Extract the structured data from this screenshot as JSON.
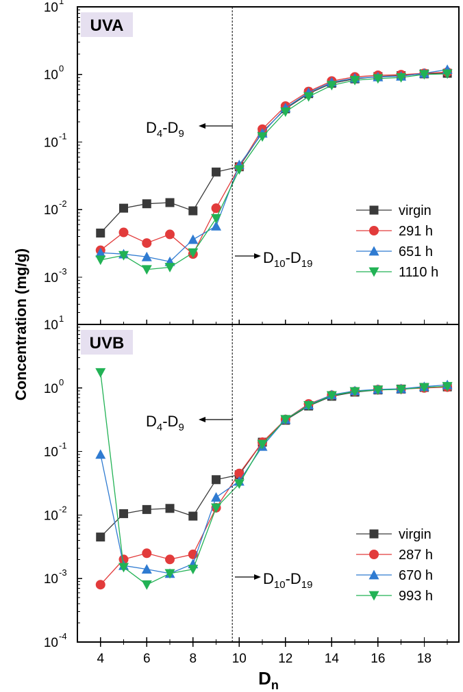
{
  "chart_data": [
    {
      "type": "line",
      "panel_label": "UVA",
      "x": [
        4,
        5,
        6,
        7,
        8,
        9,
        10,
        11,
        12,
        13,
        14,
        15,
        16,
        17,
        18,
        19
      ],
      "xlim": [
        3,
        19.5
      ],
      "ylim": [
        0.0002,
        10
      ],
      "yscale": "log",
      "xticks": [
        4,
        6,
        8,
        10,
        12,
        14,
        16,
        18
      ],
      "yticks": [
        {
          "base": "10",
          "exp": "-3",
          "value": 0.001
        },
        {
          "base": "10",
          "exp": "-2",
          "value": 0.01
        },
        {
          "base": "10",
          "exp": "-1",
          "value": 0.1
        },
        {
          "base": "10",
          "exp": "0",
          "value": 1
        },
        {
          "base": "10",
          "exp": "1",
          "value": 10
        }
      ],
      "legend_position": "right",
      "series": [
        {
          "name": "virgin",
          "color": "#3a3a3a",
          "marker": "square",
          "values": [
            0.0045,
            0.0105,
            0.0122,
            0.0127,
            0.0096,
            0.036,
            0.043,
            0.14,
            0.31,
            0.52,
            0.74,
            0.86,
            0.93,
            0.96,
            1.02,
            1.04
          ]
        },
        {
          "name": "291 h",
          "color": "#e23b3b",
          "marker": "circle",
          "values": [
            0.0025,
            0.0046,
            0.0032,
            0.0043,
            0.0022,
            0.0105,
            0.043,
            0.155,
            0.34,
            0.56,
            0.8,
            0.92,
            0.97,
            0.99,
            1.04,
            1.08
          ]
        },
        {
          "name": "651 h",
          "color": "#2f7bd1",
          "marker": "triangle-up",
          "values": [
            0.0023,
            0.0022,
            0.002,
            0.0017,
            0.0036,
            0.0057,
            0.046,
            0.135,
            0.32,
            0.54,
            0.77,
            0.88,
            0.92,
            0.94,
            1.04,
            1.18
          ]
        },
        {
          "name": "1110 h",
          "color": "#22b255",
          "marker": "triangle-down",
          "values": [
            0.0018,
            0.0021,
            0.0013,
            0.0014,
            0.0023,
            0.0074,
            0.039,
            0.12,
            0.28,
            0.47,
            0.69,
            0.82,
            0.87,
            0.9,
            1.0,
            1.02
          ]
        }
      ],
      "annotations": [
        {
          "base": "D",
          "sub1": "4",
          "mid": "-D",
          "sub2": "9"
        },
        {
          "base": "D",
          "sub1": "10",
          "mid": "-D",
          "sub2": "19"
        }
      ]
    },
    {
      "type": "line",
      "panel_label": "UVB",
      "x": [
        4,
        5,
        6,
        7,
        8,
        9,
        10,
        11,
        12,
        13,
        14,
        15,
        16,
        17,
        18,
        19
      ],
      "xlim": [
        3,
        19.5
      ],
      "ylim": [
        0.0001,
        10
      ],
      "yscale": "log",
      "xticks": [
        4,
        6,
        8,
        10,
        12,
        14,
        16,
        18
      ],
      "yticks": [
        {
          "base": "10",
          "exp": "-4",
          "value": 0.0001
        },
        {
          "base": "10",
          "exp": "-3",
          "value": 0.001
        },
        {
          "base": "10",
          "exp": "-2",
          "value": 0.01
        },
        {
          "base": "10",
          "exp": "-1",
          "value": 0.1
        },
        {
          "base": "10",
          "exp": "0",
          "value": 1
        },
        {
          "base": "10",
          "exp": "1",
          "value": 10
        }
      ],
      "legend_position": "right",
      "series": [
        {
          "name": "virgin",
          "color": "#3a3a3a",
          "marker": "square",
          "values": [
            0.0045,
            0.0105,
            0.0122,
            0.0127,
            0.0096,
            0.036,
            0.043,
            0.14,
            0.31,
            0.52,
            0.74,
            0.86,
            0.93,
            0.96,
            1.02,
            1.04
          ]
        },
        {
          "name": "287 h",
          "color": "#e23b3b",
          "marker": "circle",
          "values": [
            0.0008,
            0.002,
            0.0025,
            0.002,
            0.0024,
            0.013,
            0.045,
            0.14,
            0.32,
            0.56,
            0.77,
            0.88,
            0.94,
            0.96,
            1.0,
            1.03
          ]
        },
        {
          "name": "670 h",
          "color": "#2f7bd1",
          "marker": "triangle-up",
          "values": [
            0.09,
            0.0016,
            0.0014,
            0.0012,
            0.0017,
            0.019,
            0.034,
            0.12,
            0.32,
            0.54,
            0.78,
            0.9,
            0.95,
            0.97,
            1.05,
            1.12
          ]
        },
        {
          "name": "993 h",
          "color": "#22b255",
          "marker": "triangle-down",
          "values": [
            1.75,
            0.0015,
            0.0008,
            0.0012,
            0.0014,
            0.013,
            0.031,
            0.13,
            0.32,
            0.53,
            0.76,
            0.88,
            0.93,
            0.95,
            1.02,
            1.06
          ]
        }
      ],
      "annotations": [
        {
          "base": "D",
          "sub1": "4",
          "mid": "-D",
          "sub2": "9"
        },
        {
          "base": "D",
          "sub1": "10",
          "mid": "-D",
          "sub2": "19"
        }
      ]
    }
  ],
  "shared_axes": {
    "ylabel": "Concentration (mg/g)",
    "xlabel_base": "D",
    "xlabel_sub": "n"
  },
  "reference_line": {
    "x": 9.7
  }
}
